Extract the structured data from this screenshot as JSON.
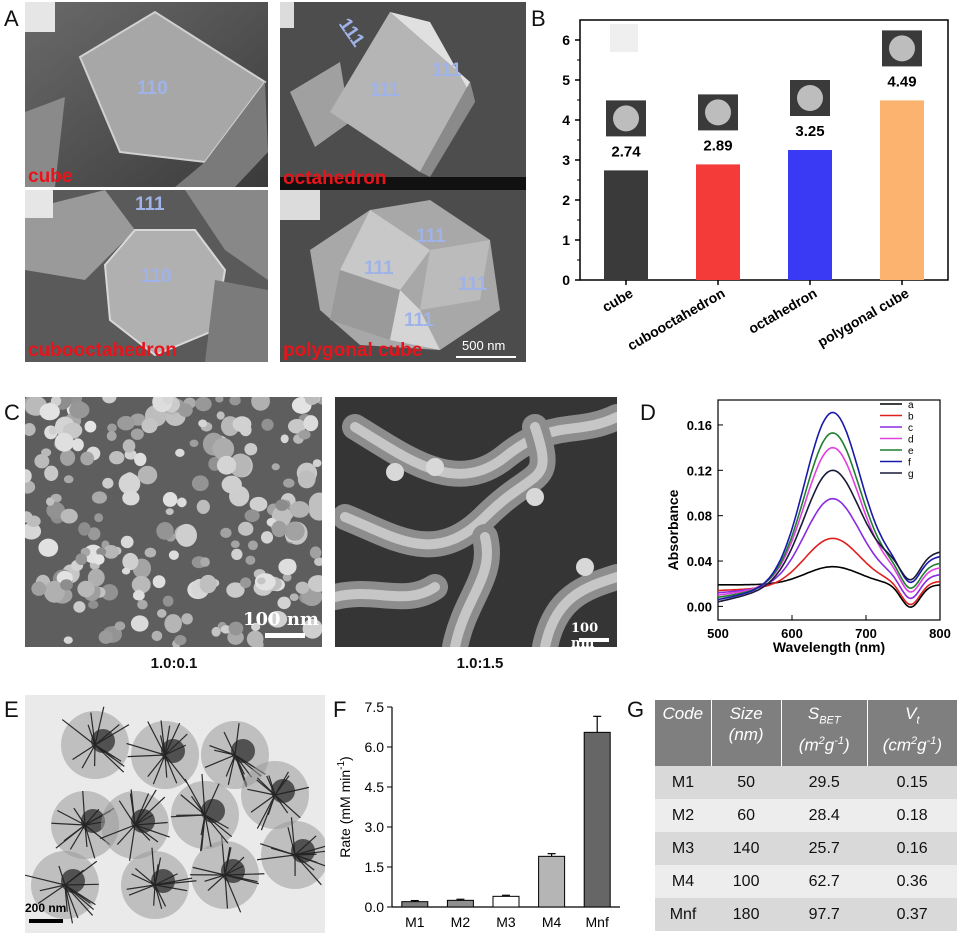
{
  "panels": {
    "A": {
      "letter": "A",
      "images": [
        {
          "name": "cube",
          "label": "cube",
          "facets": [
            "110"
          ]
        },
        {
          "name": "octahedron",
          "label": "octahedron",
          "facets": [
            "111",
            "111",
            "111"
          ]
        },
        {
          "name": "cubooctahedron",
          "label": "cubooctahedron",
          "facets": [
            "111",
            "110"
          ]
        },
        {
          "name": "polygonal-cube",
          "label": "polygonal cube",
          "facets": [
            "111",
            "111",
            "111",
            "111"
          ],
          "scalebar": "500 nm"
        }
      ]
    },
    "B": {
      "letter": "B"
    },
    "C": {
      "letter": "C",
      "images": [
        {
          "caption": "1.0:0.1",
          "scalebar": "100 nm"
        },
        {
          "caption": "1.0:1.5",
          "scalebar": "100 nm"
        }
      ]
    },
    "D": {
      "letter": "D"
    },
    "E": {
      "letter": "E",
      "scalebar": "200 nm"
    },
    "F": {
      "letter": "F"
    },
    "G": {
      "letter": "G"
    }
  },
  "chart_data": [
    {
      "id": "B",
      "type": "bar",
      "categories": [
        "cube",
        "cubooctahedron",
        "octahedron",
        "polygonal cube"
      ],
      "values": [
        2.74,
        2.89,
        3.25,
        4.49
      ],
      "data_labels": [
        "2.74",
        "2.89",
        "3.25",
        "4.49"
      ],
      "colors": [
        "#3a3a3a",
        "#f53a3a",
        "#3a3af5",
        "#fbb36f"
      ],
      "ylim": [
        0,
        6.5
      ],
      "yticks": [
        "0",
        "1",
        "2",
        "3",
        "4",
        "5",
        "6"
      ],
      "grid": false
    },
    {
      "id": "D",
      "type": "line",
      "xlabel": "Wavelength (nm)",
      "ylabel": "Absorbance",
      "xlim": [
        500,
        800
      ],
      "ylim": [
        -0.012,
        0.182
      ],
      "xticks": [
        "500",
        "600",
        "700",
        "800"
      ],
      "yticks": [
        "0.00",
        "0.04",
        "0.08",
        "0.12",
        "0.16"
      ],
      "legend_position": "top-right",
      "series": [
        {
          "name": "a",
          "color": "#000000",
          "peak": 0.035,
          "baseline500": 0.019,
          "baseline800": 0.019
        },
        {
          "name": "b",
          "color": "#e02020",
          "peak": 0.06,
          "baseline500": 0.014,
          "baseline800": 0.022
        },
        {
          "name": "c",
          "color": "#8a2be2",
          "peak": 0.095,
          "baseline500": 0.012,
          "baseline800": 0.028
        },
        {
          "name": "d",
          "color": "#e040e0",
          "peak": 0.14,
          "baseline500": 0.01,
          "baseline800": 0.034
        },
        {
          "name": "e",
          "color": "#1f7f2f",
          "peak": 0.153,
          "baseline500": 0.008,
          "baseline800": 0.038
        },
        {
          "name": "f",
          "color": "#1a1aa8",
          "peak": 0.171,
          "baseline500": 0.006,
          "baseline800": 0.044
        },
        {
          "name": "g",
          "color": "#1a1a3a",
          "peak": 0.12,
          "baseline500": 0.004,
          "baseline800": 0.048
        }
      ],
      "peak_x": 655,
      "min_x": 760
    },
    {
      "id": "F",
      "type": "bar",
      "ylabel": "Rate (mM min-1)",
      "categories": [
        "M1",
        "M2",
        "M3",
        "M4",
        "Mnf"
      ],
      "values": [
        0.2,
        0.25,
        0.4,
        1.9,
        6.55
      ],
      "errors": [
        0.04,
        0.04,
        0.04,
        0.1,
        0.6
      ],
      "colors": [
        "#7f7f7f",
        "#8f8f8f",
        "#ffffff",
        "#b5b5b5",
        "#666666"
      ],
      "ylim": [
        0,
        7.5
      ],
      "yticks": [
        "0.0",
        "1.5",
        "3.0",
        "4.5",
        "6.0",
        "7.5"
      ]
    },
    {
      "id": "G",
      "type": "table",
      "columns": [
        "Code",
        "Size (nm)",
        "S_BET (m2g-1)",
        "V_t (cm2g-1)"
      ],
      "rows": [
        [
          "M1",
          "50",
          "29.5",
          "0.15"
        ],
        [
          "M2",
          "60",
          "28.4",
          "0.18"
        ],
        [
          "M3",
          "140",
          "25.7",
          "0.16"
        ],
        [
          "M4",
          "100",
          "62.7",
          "0.36"
        ],
        [
          "Mnf",
          "180",
          "97.7",
          "0.37"
        ]
      ]
    }
  ],
  "table_header": {
    "code": "Code",
    "size_top": "Size",
    "size_bottom": "(nm)",
    "sbet_s": "S",
    "sbet_sub": "BET",
    "sbet_bottom_m": "(m",
    "sbet_bottom_2": "2",
    "sbet_bottom_g": "g",
    "sbet_bottom_1": "-1",
    "sbet_bottom_close": ")",
    "vt_v": "V",
    "vt_sub": "t",
    "vt_bottom_cm": "(cm",
    "vt_bottom_2": "2",
    "vt_bottom_g": "g",
    "vt_bottom_1": "-1",
    "vt_bottom_close": ")"
  },
  "f_ylabel": {
    "main": "Rate (mM min",
    "sup": "-1",
    "close": ")"
  }
}
